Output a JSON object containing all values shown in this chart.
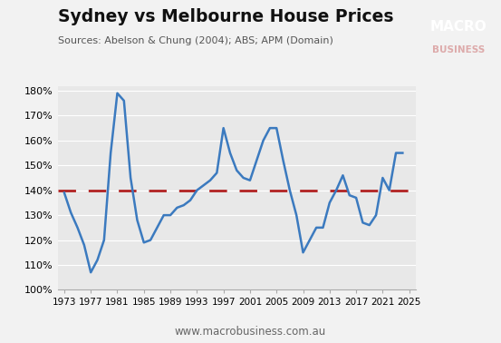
{
  "title": "Sydney vs Melbourne House Prices",
  "subtitle": "Sources: Abelson & Chung (2004); ABS; APM (Domain)",
  "footer": "www.macrobusiness.com.au",
  "line_color": "#3B7ABF",
  "dashed_line_color": "#B22222",
  "dashed_line_value": 1.4,
  "background_color": "#E8E8E8",
  "outer_background": "#F2F2F2",
  "ylim": [
    1.0,
    1.82
  ],
  "yticks": [
    1.0,
    1.1,
    1.2,
    1.3,
    1.4,
    1.5,
    1.6,
    1.7,
    1.8
  ],
  "years": [
    1973,
    1974,
    1975,
    1976,
    1977,
    1978,
    1979,
    1980,
    1981,
    1982,
    1983,
    1984,
    1985,
    1986,
    1987,
    1988,
    1989,
    1990,
    1991,
    1992,
    1993,
    1994,
    1995,
    1996,
    1997,
    1998,
    1999,
    2000,
    2001,
    2002,
    2003,
    2004,
    2005,
    2006,
    2007,
    2008,
    2009,
    2010,
    2011,
    2012,
    2013,
    2014,
    2015,
    2016,
    2017,
    2018,
    2019,
    2020,
    2021,
    2022,
    2023,
    2024
  ],
  "values": [
    1.39,
    1.31,
    1.25,
    1.18,
    1.07,
    1.12,
    1.2,
    1.55,
    1.79,
    1.76,
    1.45,
    1.28,
    1.19,
    1.2,
    1.25,
    1.3,
    1.3,
    1.33,
    1.34,
    1.36,
    1.4,
    1.42,
    1.44,
    1.47,
    1.65,
    1.55,
    1.48,
    1.45,
    1.44,
    1.52,
    1.6,
    1.65,
    1.65,
    1.52,
    1.4,
    1.3,
    1.15,
    1.2,
    1.25,
    1.25,
    1.35,
    1.4,
    1.46,
    1.38,
    1.37,
    1.27,
    1.26,
    1.3,
    1.45,
    1.4,
    1.55,
    1.55
  ],
  "xticks": [
    1973,
    1977,
    1981,
    1985,
    1989,
    1993,
    1997,
    2001,
    2005,
    2009,
    2013,
    2017,
    2021,
    2025
  ],
  "logo_color": "#CC1111",
  "logo_text1": "MACRO",
  "logo_text2": "BUSINESS",
  "xlim": [
    1972,
    2026
  ]
}
